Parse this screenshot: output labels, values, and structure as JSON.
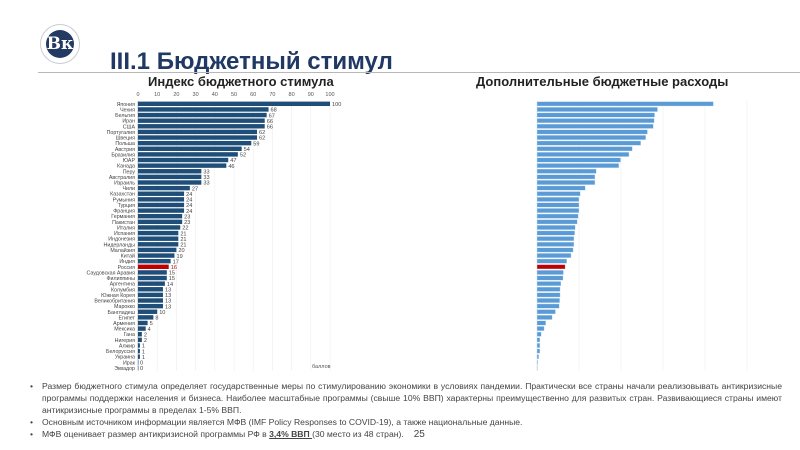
{
  "header": {
    "logo_icon": "hse-university-seal",
    "logo_glyph": "Вк",
    "title": "III.1 Бюджетный стимул"
  },
  "colors": {
    "bar_left": "#1f4e79",
    "bar_right": "#5b9bd5",
    "highlight": "#c00000",
    "title": "#1f3864"
  },
  "chart_data": [
    {
      "type": "bar",
      "orientation": "horizontal",
      "title": "Индекс бюджетного стимула",
      "xlabel": "баллов",
      "xlim": [
        0,
        100
      ],
      "xticks": [
        "0",
        "10",
        "20",
        "30",
        "40",
        "50",
        "60",
        "70",
        "80",
        "90",
        "100"
      ],
      "grid": true,
      "highlight": "Россия",
      "categories": [
        "Япония",
        "Чехия",
        "Бельгия",
        "Иран",
        "США",
        "Португалия",
        "Швеция",
        "Польша",
        "Австрия",
        "Бразилия",
        "ЮАР",
        "Канада",
        "Перу",
        "Австралия",
        "Израиль",
        "Чили",
        "Казахстан",
        "Румыния",
        "Турция",
        "Франция",
        "Германия",
        "Пакистан",
        "Италия",
        "Испания",
        "Индонезия",
        "Нидерланды",
        "Малайзия",
        "Китай",
        "Индия",
        "Россия",
        "Саудовская Аравия",
        "Филиппины",
        "Аргентина",
        "Колумбия",
        "Южная Корея",
        "Великобритания",
        "Марокко",
        "Бангладеш",
        "Египет",
        "Армения",
        "Мексика",
        "Гана",
        "Нигерия",
        "Алжир",
        "Белоруссия",
        "Украина",
        "Ирак",
        "Эквадор"
      ],
      "values": [
        100,
        68,
        67,
        66,
        66,
        62,
        62,
        59,
        54,
        52,
        47,
        46,
        33,
        33,
        33,
        27,
        24,
        24,
        24,
        24,
        23,
        23,
        22,
        21,
        21,
        21,
        20,
        19,
        17,
        16,
        15,
        15,
        14,
        13,
        13,
        13,
        13,
        10,
        8,
        5,
        4,
        2,
        2,
        1,
        1,
        1,
        0,
        0
      ]
    },
    {
      "type": "bar",
      "orientation": "horizontal",
      "title": "Дополнительные бюджетные расходы",
      "grid": true,
      "highlight_index": 29,
      "values": [
        4.2,
        2.87,
        2.8,
        2.79,
        2.77,
        2.63,
        2.59,
        2.47,
        2.27,
        2.19,
        1.99,
        1.95,
        1.41,
        1.38,
        1.38,
        1.15,
        1.03,
        1.0,
        1.0,
        1.0,
        0.98,
        0.96,
        0.91,
        0.9,
        0.88,
        0.88,
        0.86,
        0.81,
        0.71,
        0.67,
        0.63,
        0.62,
        0.57,
        0.55,
        0.55,
        0.54,
        0.53,
        0.44,
        0.36,
        0.21,
        0.17,
        0.1,
        0.07,
        0.07,
        0.07,
        0.04,
        0.02,
        0.01
      ],
      "xlim": [
        0,
        6
      ]
    }
  ],
  "notes": [
    {
      "text": "Размер бюджетного стимула определяет государственные меры по стимулированию экономики в условиях пандемии. Практически все страны начали реализовывать антикризисные программы поддержки населения и бизнеса. Наиболее масштабные программы (свыше 10% ВВП) характерны преимущественно для развитых стран. Развивающиеся страны имеют антикризисные программы в пределах 1-5% ВВП."
    },
    {
      "text": "Основным источником информации является МФВ (IMF Policy Responses to COVID-19), а также национальные данные."
    },
    {
      "pre": "МФВ оценивает размер антикризисной программы РФ в ",
      "emph": "3,4% ВВП ",
      "post": "(30 место из 48 стран).",
      "page": "25"
    }
  ]
}
